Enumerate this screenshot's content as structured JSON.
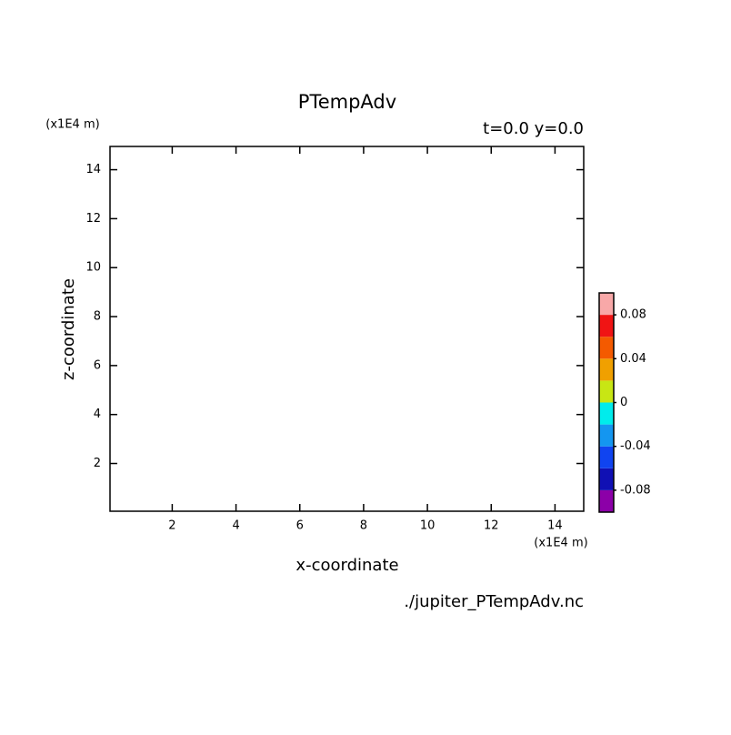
{
  "chart_data": {
    "type": "contour",
    "title": "PTempAdv",
    "subtitle": "t=0.0 y=0.0",
    "x_label": "x-coordinate",
    "y_label": "z-coordinate",
    "x_unit": "(x1E4 m)",
    "y_unit": "(x1E4 m)",
    "source": "./jupiter_PTempAdv.nc",
    "xlim": [
      0.05,
      14.9
    ],
    "ylim": [
      0.05,
      14.95
    ],
    "xticks": [
      2,
      4,
      6,
      8,
      10,
      12,
      14
    ],
    "yticks": [
      2,
      4,
      6,
      8,
      10,
      12,
      14
    ],
    "colorbar": {
      "levels": [
        -0.1,
        -0.08,
        -0.06,
        -0.04,
        -0.02,
        0,
        0.02,
        0.04,
        0.06,
        0.08,
        0.1
      ],
      "colors": [
        "#8c00a8",
        "#1010b4",
        "#1044f0",
        "#1496f0",
        "#00ecec",
        "#c8e614",
        "#f0a000",
        "#f45a00",
        "#f01414",
        "#f8a8a8"
      ],
      "ticks": [
        -0.08,
        -0.04,
        0,
        0.04,
        0.08
      ]
    }
  }
}
